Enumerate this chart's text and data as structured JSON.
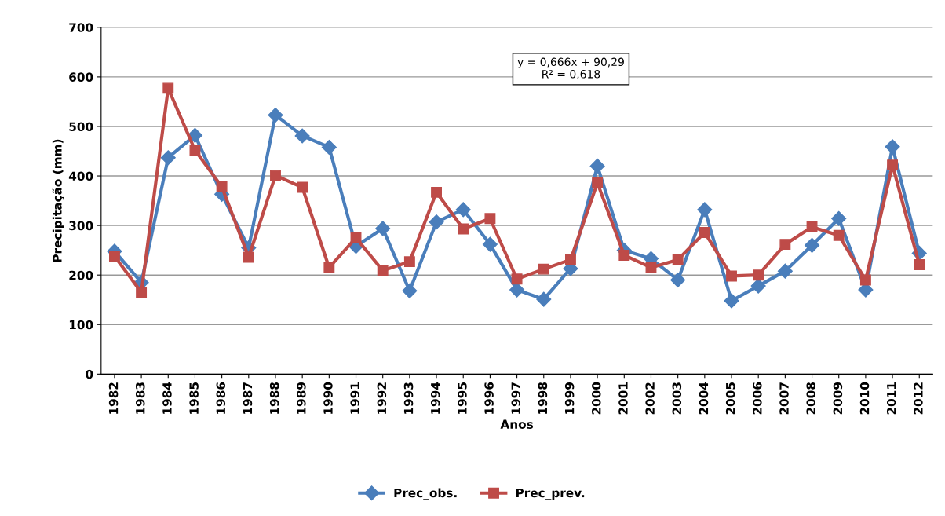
{
  "chart_data": {
    "type": "line",
    "xlabel": "Anos",
    "ylabel": "Precipitação (mm)",
    "categories": [
      "1982",
      "1983",
      "1984",
      "1985",
      "1986",
      "1987",
      "1988",
      "1989",
      "1990",
      "1991",
      "1992",
      "1993",
      "1994",
      "1995",
      "1996",
      "1997",
      "1998",
      "1999",
      "2000",
      "2001",
      "2002",
      "2003",
      "2004",
      "2005",
      "2006",
      "2007",
      "2008",
      "2009",
      "2010",
      "2011",
      "2012"
    ],
    "series": [
      {
        "name": "Prec_obs.",
        "color": "#4a7ebb",
        "marker": "diamond",
        "values": [
          248,
          185,
          437,
          482,
          363,
          255,
          523,
          481,
          458,
          258,
          294,
          168,
          307,
          332,
          262,
          170,
          151,
          213,
          420,
          250,
          233,
          190,
          332,
          148,
          178,
          208,
          260,
          314,
          170,
          459,
          244
        ]
      },
      {
        "name": "Prec_prev.",
        "color": "#be4b48",
        "marker": "square",
        "values": [
          238,
          165,
          577,
          452,
          378,
          236,
          401,
          377,
          215,
          275,
          209,
          227,
          367,
          293,
          314,
          192,
          212,
          231,
          386,
          240,
          215,
          231,
          286,
          198,
          200,
          262,
          297,
          280,
          190,
          422,
          221
        ]
      }
    ],
    "ylim": [
      0,
      700
    ],
    "yticks": [
      0,
      100,
      200,
      300,
      400,
      500,
      600,
      700
    ],
    "grid": "y",
    "legend": "bottom",
    "line_style": "solid",
    "annotations": [
      "y = 0,666x + 90,29\nR² = 0,618"
    ]
  }
}
